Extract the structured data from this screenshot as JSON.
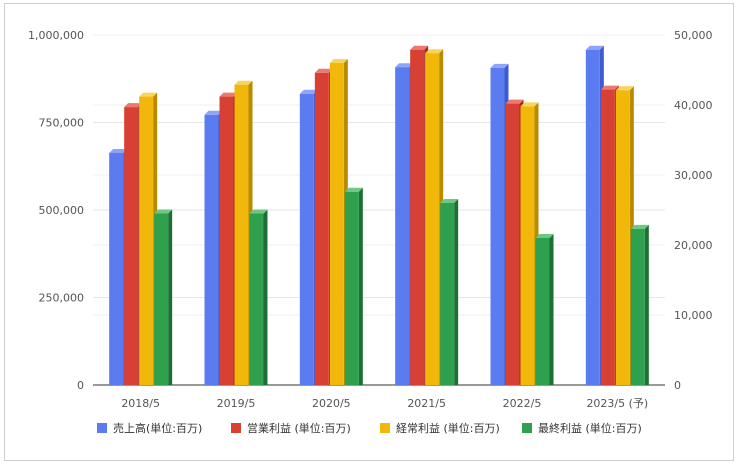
{
  "chart_data": {
    "type": "bar",
    "categories": [
      "2018/5",
      "2019/5",
      "2020/5",
      "2021/5",
      "2022/5",
      "2023/5 (予)"
    ],
    "series": [
      {
        "name": "売上高(単位:百万)",
        "axis": "left",
        "color": "#5b7cf0",
        "side": "#3f5bd0",
        "top": "#8da4f7",
        "values": [
          663000,
          772000,
          832000,
          908000,
          906000,
          958000
        ]
      },
      {
        "name": "営業利益 (単位:百万)",
        "axis": "right",
        "color": "#d84034",
        "side": "#a92a21",
        "top": "#ea7a70",
        "values": [
          39700,
          41200,
          44600,
          47900,
          40200,
          42200
        ]
      },
      {
        "name": "経常利益 (単位:百万)",
        "axis": "right",
        "color": "#f1b80b",
        "side": "#b88a00",
        "top": "#f8d45a",
        "values": [
          41200,
          42900,
          46000,
          47400,
          39800,
          42100
        ]
      },
      {
        "name": "最終利益 (単位:百万)",
        "axis": "right",
        "color": "#2fa04e",
        "side": "#1d7034",
        "top": "#6cc884",
        "values": [
          24500,
          24500,
          27600,
          26000,
          21000,
          22300
        ]
      }
    ],
    "y_left": {
      "min": 0,
      "max": 1000000,
      "ticks": [
        "0",
        "250,000",
        "500,000",
        "750,000",
        "1,000,000"
      ]
    },
    "y_right": {
      "min": 0,
      "max": 50000,
      "ticks": [
        "0",
        "10,000",
        "20,000",
        "30,000",
        "40,000",
        "50,000"
      ]
    },
    "grid": true,
    "legend_position": "bottom"
  }
}
